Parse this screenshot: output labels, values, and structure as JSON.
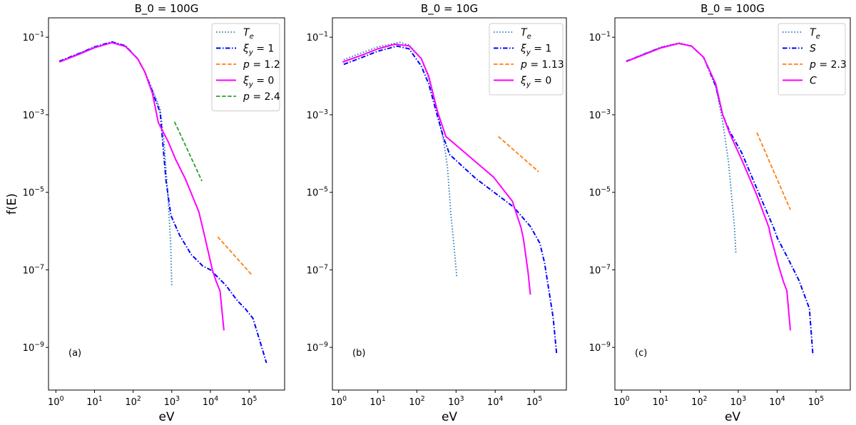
{
  "chart_data": [
    {
      "type": "line",
      "title": "B_0 = 100G",
      "panel_label": "(a)",
      "xlabel": "eV",
      "ylabel": "f(E)",
      "xscale": "log",
      "yscale": "log",
      "xlim_log10": [
        -0.19,
        5.92
      ],
      "ylim_log10": [
        -10.1,
        -0.5
      ],
      "xticks": [
        "10^0",
        "10^1",
        "10^2",
        "10^3",
        "10^4",
        "10^5"
      ],
      "yticks": [
        "10^-1",
        "10^-3",
        "10^-5",
        "10^-7",
        "10^-9"
      ],
      "legend": "top-right",
      "series": [
        {
          "name": "T_e",
          "style": "dotted",
          "color": "#1f77b4",
          "log10_E": [
            0.09,
            0.6,
            1.0,
            1.45,
            1.8,
            2.12,
            2.3,
            2.5,
            2.7,
            2.8,
            2.9,
            2.97,
            3.0
          ],
          "log10_f": [
            -1.62,
            -1.42,
            -1.25,
            -1.12,
            -1.22,
            -1.56,
            -1.89,
            -2.35,
            -2.86,
            -3.7,
            -5.1,
            -6.3,
            -7.4
          ]
        },
        {
          "name": "ξ_y = 1",
          "style": "dashdot",
          "color": "#0000ff",
          "log10_E": [
            0.09,
            0.6,
            1.0,
            1.45,
            1.8,
            2.12,
            2.3,
            2.5,
            2.7,
            2.85,
            2.98,
            3.2,
            3.5,
            3.8,
            4.0,
            4.2,
            4.4,
            4.7,
            4.9,
            5.1,
            5.3,
            5.45
          ],
          "log10_f": [
            -1.62,
            -1.42,
            -1.25,
            -1.12,
            -1.22,
            -1.56,
            -1.89,
            -2.4,
            -2.95,
            -4.7,
            -5.6,
            -6.1,
            -6.6,
            -6.9,
            -7.0,
            -7.2,
            -7.4,
            -7.8,
            -8.0,
            -8.25,
            -8.9,
            -9.4
          ]
        },
        {
          "name": "p = 1.2",
          "style": "dashed",
          "color": "#ff7f0e",
          "log10_E": [
            4.19,
            5.07
          ],
          "log10_f": [
            -6.15,
            -7.13
          ]
        },
        {
          "name": "ξ_y = 0",
          "style": "solid",
          "color": "#ff00ff",
          "log10_E": [
            0.09,
            0.6,
            1.0,
            1.45,
            1.8,
            2.12,
            2.3,
            2.5,
            2.65,
            2.9,
            3.1,
            3.35,
            3.7,
            3.85,
            4.05,
            4.15,
            4.25,
            4.35
          ],
          "log10_f": [
            -1.64,
            -1.44,
            -1.27,
            -1.14,
            -1.24,
            -1.56,
            -1.89,
            -2.45,
            -3.2,
            -3.68,
            -4.15,
            -4.65,
            -5.5,
            -6.13,
            -7.0,
            -7.3,
            -7.55,
            -8.56
          ]
        },
        {
          "name": "p = 2.4",
          "style": "dashed",
          "color": "#2ca02c",
          "log10_E": [
            3.07,
            3.78
          ],
          "log10_f": [
            -3.18,
            -4.71
          ]
        }
      ]
    },
    {
      "type": "line",
      "title": "B_0 = 10G",
      "panel_label": "(b)",
      "xlabel": "eV",
      "ylabel": "",
      "xscale": "log",
      "yscale": "log",
      "xlim_log10": [
        -0.16,
        5.82
      ],
      "ylim_log10": [
        -10.1,
        -0.5
      ],
      "xticks": [
        "10^0",
        "10^1",
        "10^2",
        "10^3",
        "10^4",
        "10^5"
      ],
      "yticks": [
        "10^-1",
        "10^-3",
        "10^-5",
        "10^-7",
        "10^-9"
      ],
      "legend": "top-right",
      "series": [
        {
          "name": "T_e",
          "style": "dotted",
          "color": "#1f77b4",
          "log10_E": [
            0.13,
            0.6,
            1.0,
            1.56,
            1.8,
            2.11,
            2.3,
            2.53,
            2.68,
            2.78,
            2.87,
            2.95,
            3.02
          ],
          "log10_f": [
            -1.58,
            -1.4,
            -1.25,
            -1.13,
            -1.2,
            -1.55,
            -2.05,
            -2.99,
            -3.66,
            -4.35,
            -5.6,
            -6.4,
            -7.2
          ]
        },
        {
          "name": "ξ_y = 1",
          "style": "dashdot",
          "color": "#0000ff",
          "log10_E": [
            0.13,
            0.6,
            1.0,
            1.5,
            1.8,
            2.11,
            2.3,
            2.53,
            2.68,
            2.84,
            3.5,
            4.47,
            4.9,
            5.14,
            5.26,
            5.48,
            5.57
          ],
          "log10_f": [
            -1.7,
            -1.52,
            -1.36,
            -1.23,
            -1.3,
            -1.74,
            -2.2,
            -3.05,
            -3.59,
            -4.03,
            -4.64,
            -5.38,
            -5.88,
            -6.31,
            -6.81,
            -8.22,
            -9.17
          ]
        },
        {
          "name": "p = 1.13",
          "style": "dashed",
          "color": "#ff7f0e",
          "log10_E": [
            4.08,
            5.11
          ],
          "log10_f": [
            -3.56,
            -4.47
          ]
        },
        {
          "name": "ξ_y = 0",
          "style": "solid",
          "color": "#ff00ff",
          "log10_E": [
            0.1,
            0.6,
            1.0,
            1.44,
            1.8,
            2.11,
            2.3,
            2.53,
            2.74,
            3.96,
            4.44,
            4.66,
            4.72,
            4.84,
            4.9
          ],
          "log10_f": [
            -1.64,
            -1.46,
            -1.3,
            -1.18,
            -1.22,
            -1.55,
            -2.0,
            -2.93,
            -3.56,
            -4.61,
            -5.23,
            -5.91,
            -6.19,
            -7.05,
            -7.64
          ]
        }
      ]
    },
    {
      "type": "line",
      "title": "B_0 = 100G",
      "panel_label": "(c)",
      "xlabel": "eV",
      "ylabel": "",
      "xscale": "log",
      "yscale": "log",
      "xlim_log10": [
        -0.17,
        5.88
      ],
      "ylim_log10": [
        -10.1,
        -0.5
      ],
      "xticks": [
        "10^0",
        "10^1",
        "10^2",
        "10^3",
        "10^4",
        "10^5"
      ],
      "yticks": [
        "10^-1",
        "10^-3",
        "10^-5",
        "10^-7",
        "10^-9"
      ],
      "legend": "top-right",
      "series": [
        {
          "name": "T_e",
          "style": "dotted",
          "color": "#1f77b4",
          "log10_E": [
            0.12,
            0.6,
            1.0,
            1.47,
            1.8,
            2.11,
            2.42,
            2.6,
            2.75,
            2.9,
            2.94
          ],
          "log10_f": [
            -1.62,
            -1.42,
            -1.26,
            -1.15,
            -1.22,
            -1.52,
            -2.26,
            -3.18,
            -4.22,
            -5.88,
            -6.56
          ]
        },
        {
          "name": "S",
          "style": "dashdot",
          "color": "#0000ff",
          "log10_E": [
            0.12,
            0.6,
            1.0,
            1.47,
            1.8,
            2.11,
            2.42,
            2.6,
            2.78,
            3.09,
            3.45,
            3.91,
            4.01,
            4.25,
            4.56,
            4.83,
            4.92
          ],
          "log10_f": [
            -1.62,
            -1.43,
            -1.27,
            -1.16,
            -1.23,
            -1.52,
            -2.26,
            -3.0,
            -3.43,
            -3.98,
            -4.84,
            -5.91,
            -6.19,
            -6.65,
            -7.27,
            -8.0,
            -9.2
          ]
        },
        {
          "name": "p = 2.3",
          "style": "dashed",
          "color": "#ff7f0e",
          "log10_E": [
            3.48,
            4.34
          ],
          "log10_f": [
            -3.46,
            -5.45
          ]
        },
        {
          "name": "C",
          "style": "solid",
          "color": "#ff00ff",
          "log10_E": [
            0.12,
            0.6,
            1.0,
            1.47,
            1.8,
            2.11,
            2.42,
            2.6,
            2.78,
            3.09,
            3.48,
            3.79,
            3.82,
            4.03,
            4.16,
            4.25,
            4.34
          ],
          "log10_f": [
            -1.63,
            -1.44,
            -1.28,
            -1.16,
            -1.23,
            -1.52,
            -2.2,
            -3.0,
            -3.48,
            -4.16,
            -5.08,
            -5.91,
            -6.07,
            -6.87,
            -7.3,
            -7.54,
            -8.56
          ]
        }
      ]
    }
  ]
}
